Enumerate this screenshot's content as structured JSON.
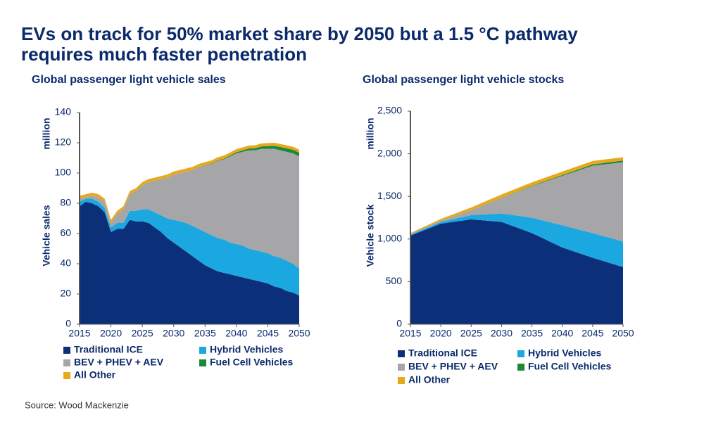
{
  "title_lines": [
    "EVs on track for 50% market share by 2050 but a 1.5 °C pathway",
    "requires much faster penetration"
  ],
  "source": "Source: Wood Mackenzie",
  "chart_data": [
    {
      "type": "stacked_area",
      "title": "Global passenger light vehicle sales",
      "y_label": "Vehicle sales",
      "y_unit": "million",
      "x": [
        2015,
        2016,
        2017,
        2018,
        2019,
        2020,
        2021,
        2022,
        2023,
        2024,
        2025,
        2026,
        2027,
        2028,
        2029,
        2030,
        2031,
        2032,
        2033,
        2034,
        2035,
        2036,
        2037,
        2038,
        2039,
        2040,
        2041,
        2042,
        2043,
        2044,
        2045,
        2046,
        2047,
        2048,
        2049,
        2050
      ],
      "xlim": [
        2015,
        2050
      ],
      "xticks": [
        2015,
        2020,
        2025,
        2030,
        2035,
        2040,
        2045,
        2050
      ],
      "ylim": [
        0,
        140
      ],
      "yticks": [
        0,
        20,
        40,
        60,
        80,
        100,
        120,
        140
      ],
      "series": [
        {
          "name": "Traditional ICE",
          "color": "#0b3079",
          "values": [
            78,
            81,
            80,
            78,
            74,
            61,
            63,
            63,
            69,
            68,
            68,
            67,
            64,
            61,
            57,
            54,
            51,
            48,
            45,
            42,
            39,
            37,
            35,
            34,
            33,
            32,
            31,
            30,
            29,
            28,
            27,
            25,
            24,
            22,
            21,
            19
          ]
        },
        {
          "name": "Hybrid Vehicles",
          "color": "#1ba8e0",
          "values": [
            3,
            2,
            3,
            3,
            3,
            3,
            4,
            4,
            6,
            7,
            8,
            9,
            10,
            11,
            13,
            15,
            17,
            19,
            20,
            21,
            22,
            22,
            22,
            22,
            21,
            21,
            21,
            20,
            20,
            20,
            20,
            20,
            20,
            20,
            19,
            18
          ]
        },
        {
          "name": "BEV + PHEV + AEV",
          "color": "#a6a6a8",
          "values": [
            2,
            1,
            2,
            3,
            4,
            3,
            6,
            9,
            11,
            13,
            16,
            18,
            21,
            24,
            27,
            30,
            32,
            34,
            37,
            41,
            44,
            47,
            51,
            53,
            57,
            60,
            62,
            65,
            66,
            68,
            69,
            71,
            71,
            72,
            73,
            74
          ]
        },
        {
          "name": "Fuel Cell Vehicles",
          "color": "#1a8a3a",
          "values": [
            0,
            0,
            0,
            0,
            0,
            0,
            0,
            0,
            0,
            0,
            0,
            0,
            0,
            0,
            0,
            0,
            0,
            0,
            0,
            0,
            0.2,
            0.3,
            0.4,
            0.5,
            0.6,
            0.8,
            1,
            1.2,
            1.4,
            1.6,
            1.8,
            2,
            2.2,
            2.3,
            2.4,
            2.5
          ]
        },
        {
          "name": "All Other",
          "color": "#e8a81c",
          "values": [
            2,
            2,
            2,
            2,
            2,
            2,
            2,
            2,
            2,
            2,
            2,
            2,
            2,
            2,
            2,
            2,
            2,
            2,
            2,
            2,
            2,
            2,
            2,
            2,
            2,
            2,
            2,
            2,
            2,
            2,
            2,
            2,
            2,
            2,
            2,
            2
          ]
        }
      ]
    },
    {
      "type": "stacked_area",
      "title": "Global passenger light vehicle stocks",
      "y_label": "Vehicle stock",
      "y_unit": "million",
      "x": [
        2015,
        2020,
        2025,
        2030,
        2035,
        2040,
        2045,
        2050
      ],
      "xlim": [
        2015,
        2050
      ],
      "xticks": [
        2015,
        2020,
        2025,
        2030,
        2035,
        2040,
        2045,
        2050
      ],
      "ylim": [
        0,
        2500
      ],
      "yticks": [
        0,
        500,
        {
          "value": 1000,
          "label": "1,000"
        },
        {
          "value": 1500,
          "label": "1,500"
        },
        {
          "value": 2000,
          "label": "2,000"
        },
        {
          "value": 2500,
          "label": "2,500"
        }
      ],
      "series": [
        {
          "name": "Traditional ICE",
          "color": "#0b3079",
          "values": [
            1040,
            1180,
            1230,
            1200,
            1070,
            900,
            780,
            670
          ]
        },
        {
          "name": "Hybrid Vehicles",
          "color": "#1ba8e0",
          "values": [
            10,
            20,
            50,
            100,
            180,
            260,
            290,
            300
          ]
        },
        {
          "name": "BEV + PHEV + AEV",
          "color": "#a6a6a8",
          "values": [
            10,
            15,
            60,
            180,
            370,
            580,
            790,
            930
          ]
        },
        {
          "name": "Fuel Cell Vehicles",
          "color": "#1a8a3a",
          "values": [
            0,
            0,
            0,
            2,
            5,
            10,
            15,
            20
          ]
        },
        {
          "name": "All Other",
          "color": "#e8a81c",
          "values": [
            10,
            20,
            30,
            40,
            40,
            40,
            40,
            40
          ]
        }
      ]
    }
  ]
}
